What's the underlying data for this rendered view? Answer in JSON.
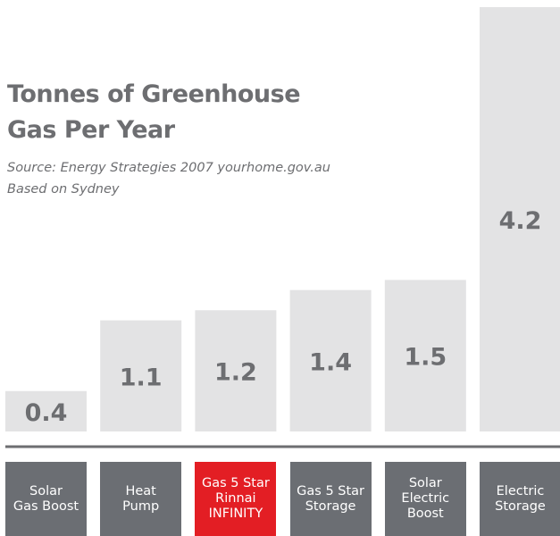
{
  "chart_data": {
    "type": "bar",
    "title": "Tonnes of Greenhouse\nGas Per Year",
    "subtitle": "Source: Energy Strategies 2007 yourhome.gov.au\nBased on Sydney",
    "categories": [
      "Solar\nGas Boost",
      "Heat\nPump",
      "Gas 5 Star\nRinnai\nINFINITY",
      "Gas 5 Star\nStorage",
      "Solar\nElectric\nBoost",
      "Electric\nStorage"
    ],
    "values": [
      0.4,
      1.1,
      1.2,
      1.4,
      1.5,
      4.2
    ],
    "color": "#e3e3e4",
    "label_color": "#6d6e71",
    "category_colors": [
      "#6b6e73",
      "#6b6e73",
      "#e31e24",
      "#6b6e73",
      "#6b6e73",
      "#6b6e73"
    ],
    "ylim": [
      0,
      4.2
    ]
  }
}
